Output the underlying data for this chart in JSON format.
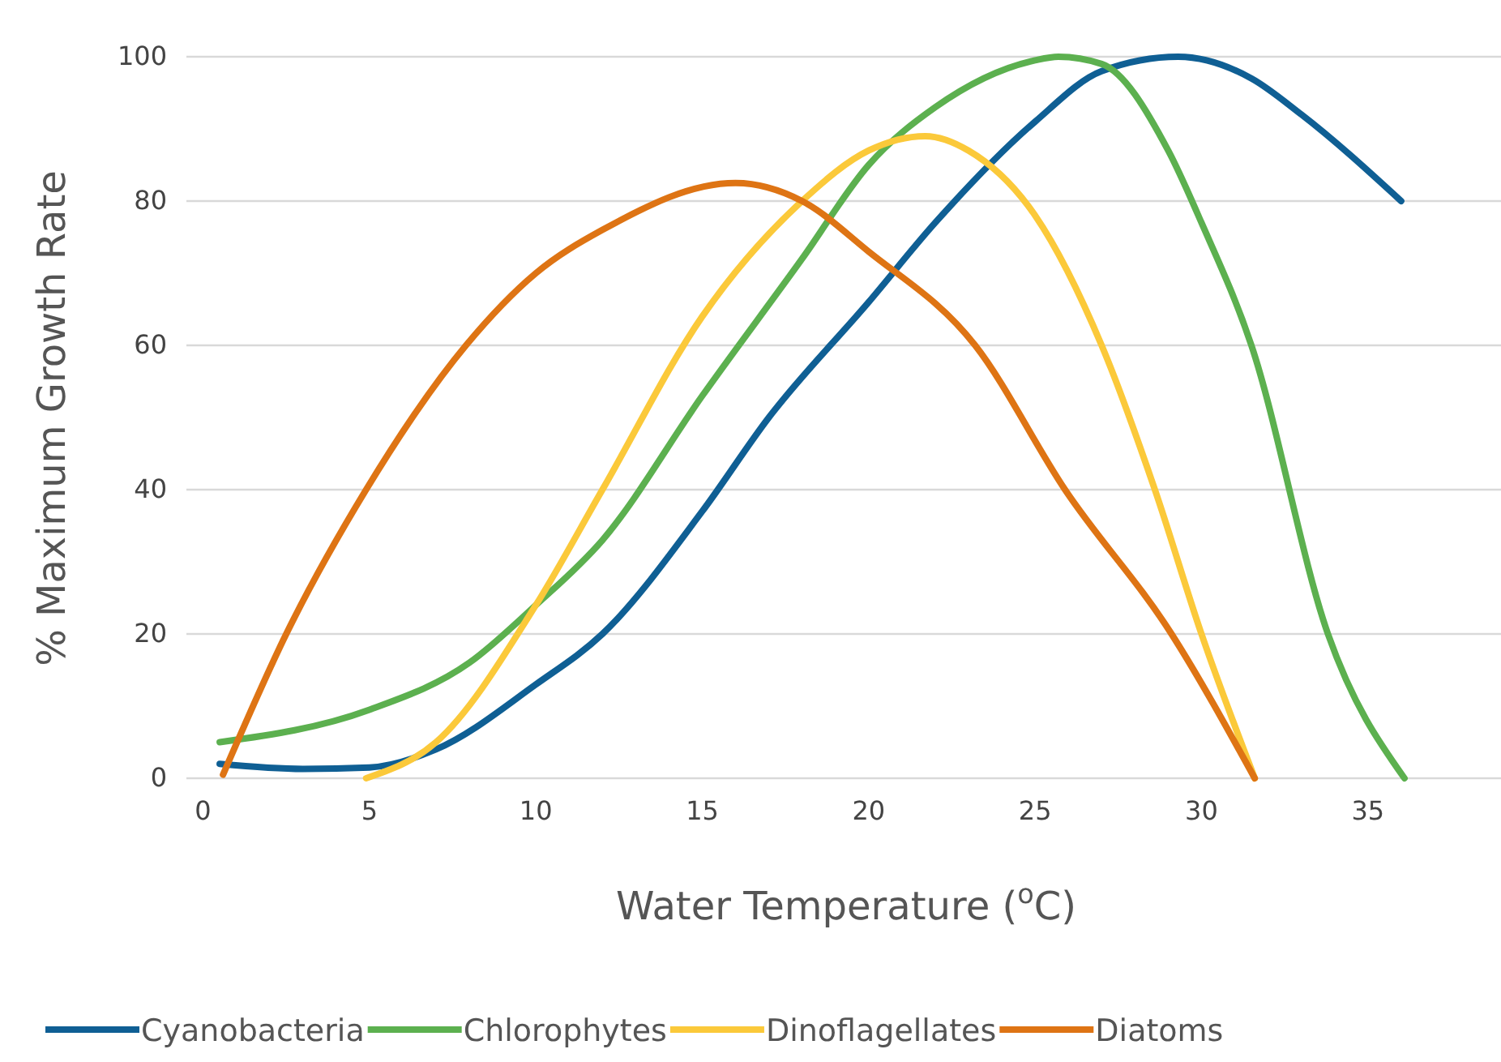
{
  "chart_data": {
    "type": "line",
    "xlabel": "Water Temperature ($^{o}$C)",
    "ylabel": "% Maximum Growth Rate",
    "xlim": [
      -0.5,
      39
    ],
    "ylim": [
      0,
      100
    ],
    "xticks": [
      0,
      5,
      10,
      15,
      20,
      25,
      30,
      35
    ],
    "yticks": [
      0,
      20,
      40,
      60,
      80,
      100
    ],
    "grid": "y",
    "legend": "bottom",
    "line_style": "solid",
    "marker": "none",
    "series": [
      {
        "name": "Cyanobacteria",
        "color": "#0f5f94",
        "x": [
          0.5,
          3,
          5,
          7,
          10,
          12,
          15,
          17,
          20,
          22,
          25,
          27,
          29.3,
          31.5,
          33,
          36
        ],
        "values": [
          2,
          1.3,
          1.5,
          4,
          13,
          20,
          37,
          50,
          66,
          77,
          91,
          98,
          100,
          97,
          92,
          80
        ]
      },
      {
        "name": "Chlorophytes",
        "color": "#5cb04f",
        "x": [
          0.5,
          5,
          8,
          10,
          12,
          15,
          18,
          20,
          22,
          25,
          25.7,
          27,
          29,
          30,
          31.5,
          33.8,
          36.1
        ],
        "values": [
          5,
          9.5,
          16,
          24,
          33,
          53,
          72,
          85,
          93,
          99.5,
          100,
          99,
          87,
          77,
          60,
          20,
          0
        ]
      },
      {
        "name": "Dinoflagellates",
        "color": "#fbc93a",
        "x": [
          4.9,
          7,
          10,
          12,
          15,
          18,
          20,
          21.7,
          23,
          25,
          27,
          28.6,
          30,
          31.6
        ],
        "values": [
          0,
          5,
          24,
          40,
          64,
          80,
          87,
          89,
          87,
          78,
          60,
          40,
          20,
          0
        ]
      },
      {
        "name": "Diatoms",
        "color": "#de7414",
        "x": [
          0.6,
          2.5,
          4.9,
          7.9,
          10,
          12,
          16,
          18,
          20,
          23.2,
          25.9,
          29.1,
          31.6
        ],
        "values": [
          0.5,
          20,
          40,
          60,
          70,
          76,
          82.5,
          80,
          73,
          60,
          40,
          20,
          0
        ]
      }
    ]
  }
}
